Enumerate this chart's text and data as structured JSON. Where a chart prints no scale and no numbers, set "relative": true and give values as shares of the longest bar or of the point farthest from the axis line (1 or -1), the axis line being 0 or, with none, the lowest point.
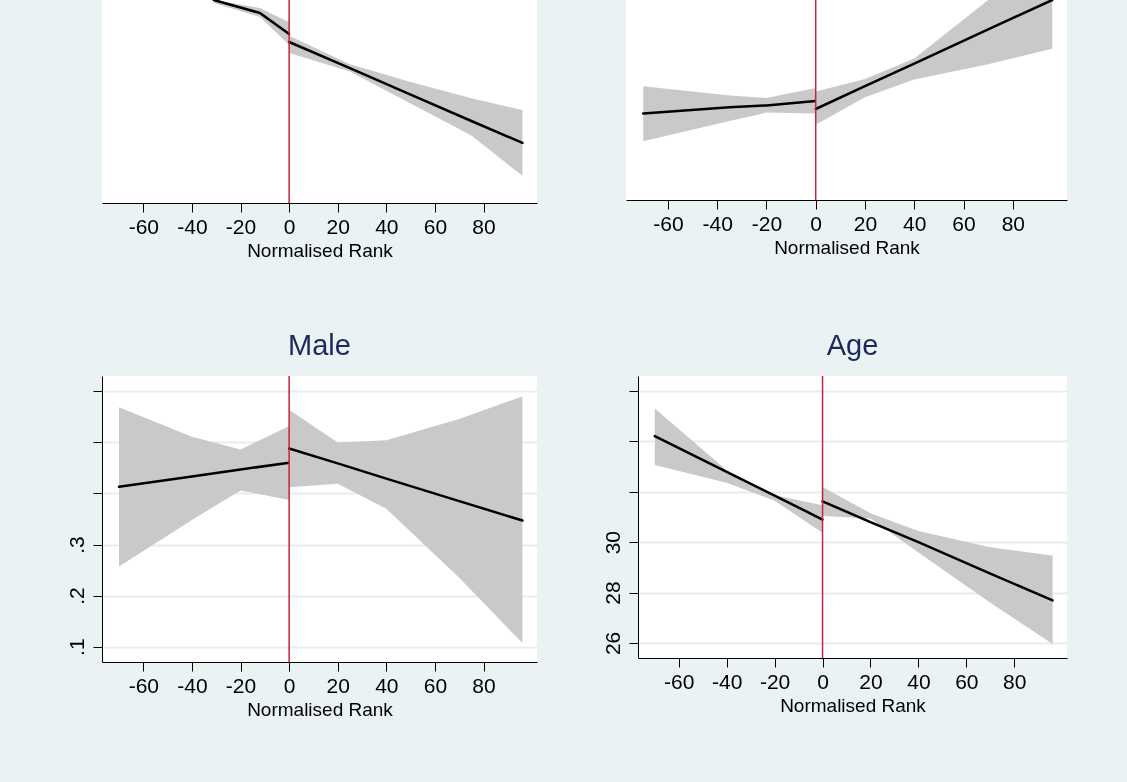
{
  "chart_data": [
    {
      "type": "line",
      "relative": true,
      "xlabel": "Normalised Rank",
      "xlim": [
        -77,
        102
      ],
      "xticks": [
        -60,
        -40,
        -20,
        0,
        20,
        40,
        60,
        80
      ],
      "ref_lines": [
        {
          "axis": "x",
          "value": 0,
          "color": "#c8203f"
        }
      ],
      "series": [
        {
          "color": "#000000",
          "x": [
            -31,
            -12,
            0
          ],
          "values": [
            1.0,
            0.936,
            0.833
          ],
          "lower": [
            0.985,
            0.916,
            0.78
          ],
          "upper": [
            1.0,
            0.961,
            0.89
          ]
        },
        {
          "color": "#000000",
          "x": [
            0,
            25,
            50,
            75,
            96
          ],
          "values": [
            0.793,
            0.664,
            0.534,
            0.404,
            0.296
          ],
          "lower": [
            0.739,
            0.648,
            0.49,
            0.332,
            0.134
          ],
          "upper": [
            0.824,
            0.683,
            0.596,
            0.516,
            0.458
          ]
        }
      ]
    },
    {
      "type": "line",
      "relative": true,
      "xlabel": "Normalised Rank",
      "xlim": [
        -77,
        102
      ],
      "xticks": [
        -60,
        -40,
        -20,
        0,
        20,
        40,
        60,
        80
      ],
      "ref_lines": [
        {
          "axis": "x",
          "value": 0,
          "color": "#c8203f"
        }
      ],
      "series": [
        {
          "color": "#000000",
          "x": [
            -70,
            -35,
            -20,
            0
          ],
          "values": [
            0.432,
            0.464,
            0.473,
            0.495
          ],
          "lower": [
            0.294,
            0.395,
            0.437,
            0.432
          ],
          "upper": [
            0.569,
            0.523,
            0.51,
            0.56
          ]
        },
        {
          "color": "#000000",
          "x": [
            0,
            20,
            40,
            70,
            96
          ],
          "values": [
            0.455,
            0.569,
            0.682,
            0.853,
            1.0
          ],
          "lower": [
            0.376,
            0.514,
            0.602,
            0.679,
            0.756
          ],
          "upper": [
            0.542,
            0.605,
            0.707,
            1.0,
            1.0
          ]
        }
      ]
    },
    {
      "type": "line",
      "title": "Male",
      "xlabel": "Normalised Rank",
      "xlim": [
        -77,
        102
      ],
      "xticks": [
        -60,
        -40,
        -20,
        0,
        20,
        40,
        60,
        80
      ],
      "ylim": [
        0.07,
        0.63
      ],
      "yticks": [
        {
          "value": 0.1,
          "label": ".1"
        },
        {
          "value": 0.2,
          "label": ".2"
        },
        {
          "value": 0.3,
          "label": ".3"
        },
        {
          "value": 0.4,
          "label": null
        },
        {
          "value": 0.5,
          "label": null
        },
        {
          "value": 0.6,
          "label": null
        }
      ],
      "grid": "y",
      "ref_lines": [
        {
          "axis": "x",
          "value": 0,
          "color": "#c8203f"
        }
      ],
      "series": [
        {
          "color": "#000000",
          "x": [
            -70,
            -40,
            -20,
            0
          ],
          "values": [
            0.413,
            0.433,
            0.447,
            0.46
          ],
          "lower": [
            0.257,
            0.348,
            0.406,
            0.387
          ],
          "upper": [
            0.569,
            0.511,
            0.486,
            0.532
          ]
        },
        {
          "color": "#000000",
          "x": [
            0,
            20,
            40,
            70,
            96
          ],
          "values": [
            0.488,
            0.459,
            0.429,
            0.385,
            0.347
          ],
          "lower": [
            0.412,
            0.419,
            0.37,
            0.235,
            0.107
          ],
          "upper": [
            0.564,
            0.5,
            0.504,
            0.546,
            0.59
          ]
        }
      ]
    },
    {
      "type": "line",
      "title": "Age",
      "xlabel": "Normalised Rank",
      "xlim": [
        -77,
        102
      ],
      "xticks": [
        -60,
        -40,
        -20,
        0,
        20,
        40,
        60,
        80
      ],
      "ylim": [
        25.4,
        36.6
      ],
      "yticks": [
        26,
        28,
        30,
        {
          "value": 32,
          "label": null
        },
        {
          "value": 34,
          "label": null
        },
        {
          "value": 36,
          "label": null
        }
      ],
      "grid": "y",
      "ref_lines": [
        {
          "axis": "x",
          "value": 0,
          "color": "#c8203f"
        }
      ],
      "series": [
        {
          "color": "#000000",
          "x": [
            -70,
            -40,
            -20,
            0
          ],
          "values": [
            34.21,
            32.79,
            31.85,
            30.9
          ],
          "lower": [
            33.07,
            32.36,
            31.65,
            30.37
          ],
          "upper": [
            35.31,
            32.86,
            31.86,
            31.47
          ]
        },
        {
          "color": "#000000",
          "x": [
            0,
            20,
            40,
            70,
            96
          ],
          "values": [
            31.62,
            30.8,
            30.0,
            28.75,
            27.69
          ],
          "lower": [
            31.04,
            30.94,
            29.59,
            27.59,
            25.96
          ],
          "upper": [
            32.19,
            31.15,
            30.44,
            29.8,
            29.47
          ]
        }
      ]
    }
  ]
}
